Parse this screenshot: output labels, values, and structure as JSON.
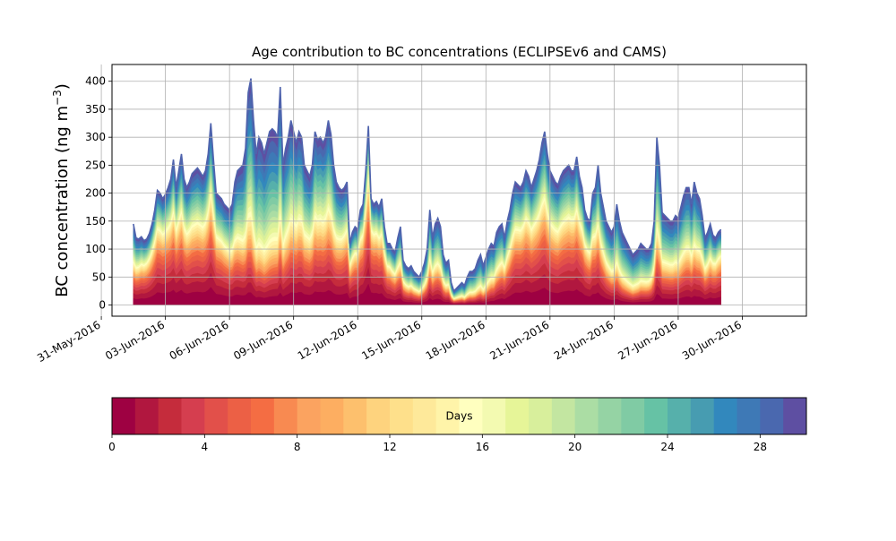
{
  "chart_data": {
    "type": "area",
    "stacked": true,
    "title": "Age contribution to BC concentrations (ECLIPSEv6 and CAMS)",
    "xlabel": "",
    "ylabel": "BC concentration (ng m⁻³)",
    "ylabel_main": "BC concentration (ng m",
    "ylabel_sup": "−3",
    "ylabel_close": ")",
    "ylim": [
      -20,
      430
    ],
    "yticks": [
      0,
      50,
      100,
      150,
      200,
      250,
      300,
      350,
      400
    ],
    "xlim": [
      "2016-05-31T12:00",
      "2016-07-03T00:00"
    ],
    "xticks": [
      "2016-05-31",
      "2016-06-03",
      "2016-06-06",
      "2016-06-09",
      "2016-06-12",
      "2016-06-15",
      "2016-06-18",
      "2016-06-21",
      "2016-06-24",
      "2016-06-27",
      "2016-06-30"
    ],
    "xtick_labels": [
      "31-May-2016",
      "03-Jun-2016",
      "06-Jun-2016",
      "09-Jun-2016",
      "12-Jun-2016",
      "15-Jun-2016",
      "18-Jun-2016",
      "21-Jun-2016",
      "24-Jun-2016",
      "27-Jun-2016",
      "30-Jun-2016"
    ],
    "grid": true,
    "time_start": "2016-06-01T12:00",
    "time_step_hours": 3,
    "total": [
      145,
      120,
      118,
      122,
      115,
      118,
      128,
      145,
      170,
      205,
      200,
      190,
      198,
      210,
      225,
      260,
      210,
      240,
      270,
      225,
      210,
      220,
      235,
      240,
      245,
      238,
      230,
      240,
      270,
      325,
      260,
      200,
      195,
      190,
      180,
      175,
      170,
      180,
      220,
      240,
      245,
      250,
      280,
      380,
      405,
      330,
      270,
      300,
      290,
      270,
      290,
      310,
      315,
      310,
      300,
      390,
      250,
      280,
      300,
      330,
      310,
      290,
      310,
      300,
      250,
      240,
      230,
      250,
      310,
      295,
      300,
      290,
      300,
      330,
      305,
      250,
      220,
      210,
      205,
      210,
      220,
      110,
      130,
      140,
      135,
      170,
      180,
      240,
      320,
      190,
      180,
      185,
      175,
      190,
      140,
      110,
      110,
      100,
      95,
      120,
      140,
      80,
      70,
      65,
      70,
      60,
      55,
      50,
      60,
      75,
      100,
      170,
      120,
      145,
      155,
      140,
      90,
      75,
      80,
      40,
      25,
      30,
      35,
      40,
      35,
      50,
      60,
      60,
      65,
      80,
      90,
      70,
      85,
      100,
      110,
      105,
      130,
      140,
      145,
      120,
      150,
      170,
      200,
      220,
      215,
      210,
      220,
      240,
      230,
      210,
      225,
      240,
      260,
      290,
      310,
      270,
      240,
      230,
      220,
      215,
      230,
      240,
      245,
      250,
      240,
      240,
      265,
      230,
      210,
      170,
      155,
      150,
      200,
      210,
      250,
      200,
      175,
      150,
      140,
      130,
      140,
      180,
      150,
      130,
      120,
      110,
      100,
      90,
      95,
      100,
      110,
      105,
      100,
      100,
      110,
      150,
      300,
      250,
      165,
      160,
      155,
      150,
      150,
      160,
      155,
      175,
      195,
      210,
      210,
      180,
      220,
      200,
      190,
      160,
      120,
      130,
      145,
      125,
      120,
      130,
      135
    ],
    "days_start": 0,
    "days_end": 30,
    "colorbar": {
      "label": "Days",
      "range": [
        0,
        30
      ],
      "ticks": [
        0,
        4,
        8,
        12,
        16,
        20,
        24,
        28
      ],
      "colormap": "Spectral",
      "levels": 30,
      "colors": [
        "#9e0142",
        "#b1173f",
        "#c52c3c",
        "#d53e4f",
        "#e2504a",
        "#ec6045",
        "#f46d43",
        "#f88a51",
        "#fba360",
        "#fdae61",
        "#fdc06d",
        "#fed37e",
        "#fee08b",
        "#fee99a",
        "#fff4a9",
        "#ffffbf",
        "#f3fab1",
        "#e6f598",
        "#d8ef9c",
        "#c3e6a1",
        "#abdda4",
        "#95d3a4",
        "#80cba4",
        "#66c2a5",
        "#56b0ab",
        "#479cb1",
        "#3288bd",
        "#3e79b6",
        "#4a68af",
        "#5e4fa2"
      ]
    }
  }
}
